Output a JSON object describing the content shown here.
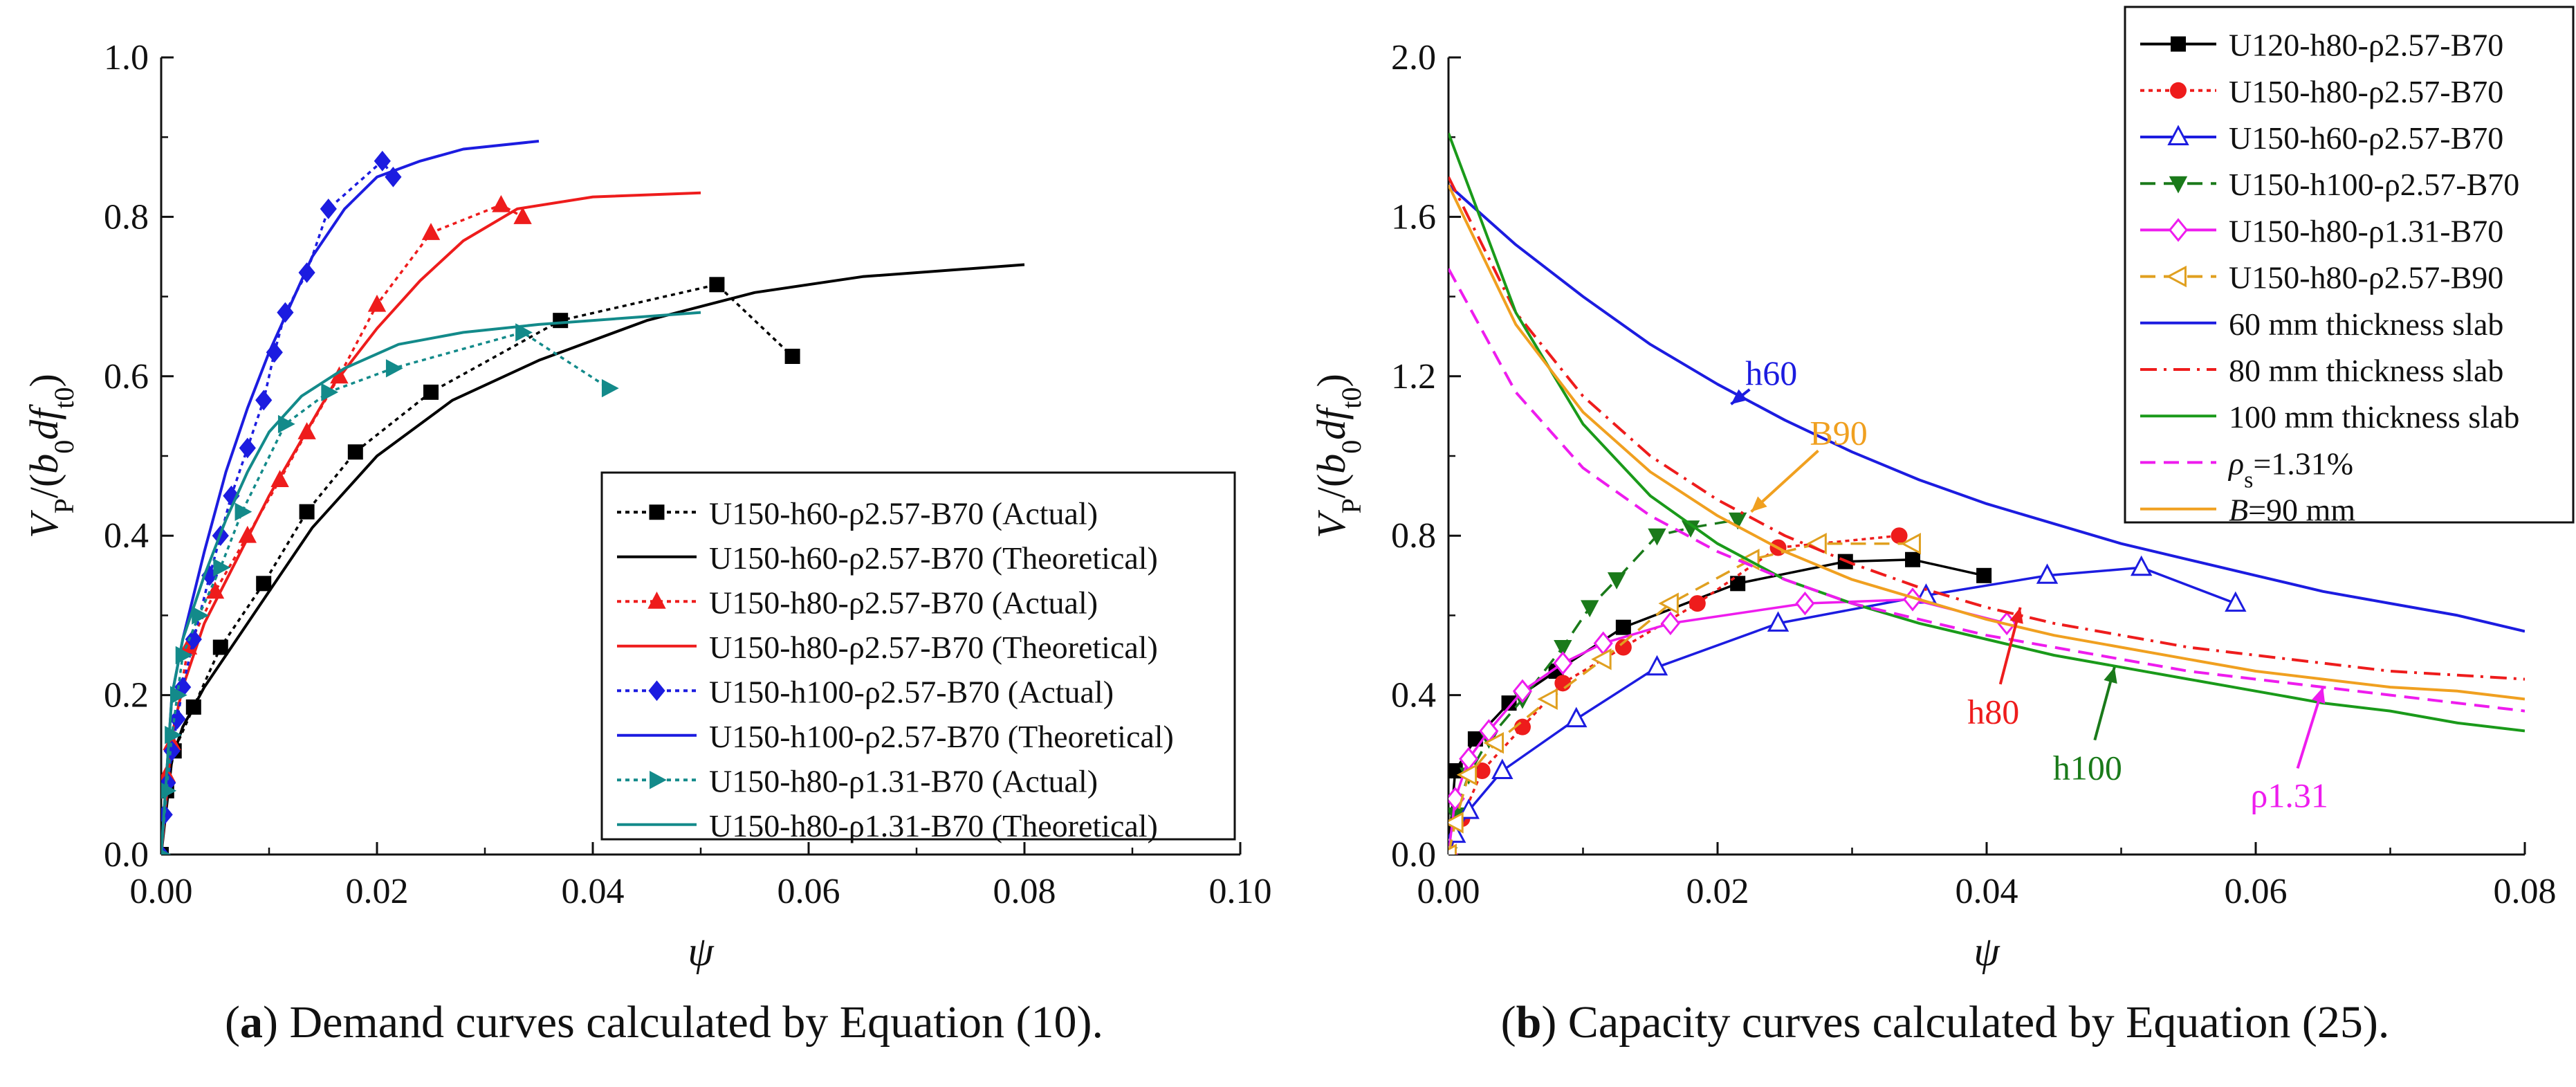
{
  "captions": {
    "a_prefix": "(",
    "a_letter": "a",
    "a_text": ") Demand curves calculated by Equation (10).",
    "b_prefix": "(",
    "b_letter": "b",
    "b_text": ") Capacity curves calculated by Equation (25)."
  },
  "chart_data": [
    {
      "id": "a",
      "type": "line",
      "xlabel": "ψ",
      "ylabel": "V_P/(b_0 d f_t0)",
      "xlim": [
        0,
        0.1
      ],
      "ylim": [
        0,
        1.0
      ],
      "xticks": [
        0.0,
        0.02,
        0.04,
        0.06,
        0.08,
        0.1
      ],
      "xtick_labels": [
        "0.00",
        "0.02",
        "0.04",
        "0.06",
        "0.08",
        "0.10"
      ],
      "yticks": [
        0.0,
        0.2,
        0.4,
        0.6,
        0.8,
        1.0
      ],
      "ytick_labels": [
        "0.0",
        "0.2",
        "0.4",
        "0.6",
        "0.8",
        "1.0"
      ],
      "legend_position": "lower-right",
      "series": [
        {
          "name": "U150-h60-ρ2.57-B70 (Actual)",
          "color": "#000000",
          "dash": "dotted",
          "marker": "square",
          "x": [
            0,
            0.0005,
            0.0012,
            0.003,
            0.0055,
            0.0095,
            0.0135,
            0.018,
            0.025,
            0.037,
            0.0515,
            0.0585
          ],
          "y": [
            0,
            0.08,
            0.13,
            0.185,
            0.26,
            0.34,
            0.43,
            0.505,
            0.58,
            0.67,
            0.715,
            0.625
          ]
        },
        {
          "name": "U150-h60-ρ2.57-B70 (Theoretical)",
          "color": "#000000",
          "dash": "solid",
          "marker": "none",
          "x": [
            0,
            0.001,
            0.002,
            0.004,
            0.007,
            0.01,
            0.014,
            0.02,
            0.027,
            0.035,
            0.045,
            0.055,
            0.065,
            0.08
          ],
          "y": [
            0,
            0.12,
            0.16,
            0.21,
            0.27,
            0.33,
            0.41,
            0.5,
            0.57,
            0.62,
            0.67,
            0.705,
            0.725,
            0.74
          ]
        },
        {
          "name": "U150-h80-ρ2.57-B70 (Actual)",
          "color": "#ee1c1c",
          "dash": "dotted",
          "marker": "triangle",
          "x": [
            0,
            0.0005,
            0.001,
            0.0025,
            0.005,
            0.008,
            0.011,
            0.0135,
            0.0165,
            0.02,
            0.025,
            0.0315,
            0.0335
          ],
          "y": [
            0,
            0.1,
            0.14,
            0.26,
            0.33,
            0.4,
            0.47,
            0.53,
            0.6,
            0.69,
            0.78,
            0.815,
            0.8
          ]
        },
        {
          "name": "U150-h80-ρ2.57-B70 (Theoretical)",
          "color": "#ee1c1c",
          "dash": "solid",
          "marker": "none",
          "x": [
            0,
            0.001,
            0.002,
            0.004,
            0.007,
            0.01,
            0.013,
            0.016,
            0.02,
            0.024,
            0.028,
            0.033,
            0.04,
            0.05
          ],
          "y": [
            0,
            0.15,
            0.21,
            0.29,
            0.37,
            0.45,
            0.52,
            0.59,
            0.66,
            0.72,
            0.77,
            0.81,
            0.825,
            0.83
          ]
        },
        {
          "name": "U150-h100-ρ2.57-B70 (Actual)",
          "color": "#1c1ce0",
          "dash": "dotted",
          "marker": "diamond",
          "x": [
            0,
            0.0003,
            0.0006,
            0.001,
            0.0015,
            0.002,
            0.003,
            0.0045,
            0.0055,
            0.0065,
            0.008,
            0.0095,
            0.0105,
            0.0115,
            0.0135,
            0.0155,
            0.0205,
            0.0215
          ],
          "y": [
            0,
            0.05,
            0.09,
            0.13,
            0.17,
            0.21,
            0.27,
            0.35,
            0.4,
            0.45,
            0.51,
            0.57,
            0.63,
            0.68,
            0.73,
            0.81,
            0.87,
            0.85
          ]
        },
        {
          "name": "U150-h100-ρ2.57-B70 (Theoretical)",
          "color": "#1c1ce0",
          "dash": "solid",
          "marker": "none",
          "x": [
            0,
            0.001,
            0.002,
            0.004,
            0.006,
            0.008,
            0.01,
            0.012,
            0.014,
            0.017,
            0.02,
            0.024,
            0.028,
            0.035
          ],
          "y": [
            0,
            0.2,
            0.27,
            0.38,
            0.48,
            0.56,
            0.63,
            0.69,
            0.75,
            0.81,
            0.85,
            0.87,
            0.885,
            0.895
          ]
        },
        {
          "name": "U150-h80-ρ1.31-B70 (Actual)",
          "color": "#138a8a",
          "dash": "dotted",
          "marker": "triangle-right",
          "x": [
            0,
            0.0005,
            0.001,
            0.0015,
            0.002,
            0.0035,
            0.0055,
            0.0075,
            0.0115,
            0.0155,
            0.0215,
            0.0335,
            0.0415
          ],
          "y": [
            0,
            0.08,
            0.15,
            0.2,
            0.25,
            0.3,
            0.36,
            0.43,
            0.54,
            0.58,
            0.61,
            0.655,
            0.585
          ]
        },
        {
          "name": "U150-h80-ρ1.31-B70 (Theoretical)",
          "color": "#138a8a",
          "dash": "solid",
          "marker": "none",
          "x": [
            0,
            0.001,
            0.002,
            0.004,
            0.006,
            0.008,
            0.01,
            0.013,
            0.017,
            0.022,
            0.028,
            0.035,
            0.045,
            0.05
          ],
          "y": [
            0,
            0.2,
            0.27,
            0.35,
            0.42,
            0.48,
            0.53,
            0.575,
            0.61,
            0.64,
            0.655,
            0.665,
            0.675,
            0.68
          ]
        }
      ]
    },
    {
      "id": "b",
      "type": "line",
      "xlabel": "ψ",
      "ylabel": "V_P/(b_0 d f_t0)",
      "xlim": [
        0,
        0.08
      ],
      "ylim": [
        0,
        2.0
      ],
      "xticks": [
        0.0,
        0.02,
        0.04,
        0.06,
        0.08
      ],
      "xtick_labels": [
        "0.00",
        "0.02",
        "0.04",
        "0.06",
        "0.08"
      ],
      "yticks": [
        0.0,
        0.4,
        0.8,
        1.2,
        1.6,
        2.0
      ],
      "ytick_labels": [
        "0.0",
        "0.4",
        "0.8",
        "1.2",
        "1.6",
        "2.0"
      ],
      "legend_position": "top-right",
      "series": [
        {
          "name": "U120-h80-ρ2.57-B70",
          "color": "#000000",
          "dash": "solid",
          "marker": "square",
          "legend_sample": "solid",
          "x": [
            0,
            0.0005,
            0.002,
            0.0045,
            0.008,
            0.013,
            0.0215,
            0.0295,
            0.0345,
            0.0398
          ],
          "y": [
            0,
            0.21,
            0.29,
            0.38,
            0.46,
            0.57,
            0.68,
            0.735,
            0.74,
            0.7
          ]
        },
        {
          "name": "U150-h80-ρ2.57-B70",
          "color": "#ee1c1c",
          "dash": "dotted",
          "marker": "circle",
          "x": [
            0,
            0.001,
            0.0025,
            0.0055,
            0.0085,
            0.013,
            0.0185,
            0.0245,
            0.0335
          ],
          "y": [
            0,
            0.09,
            0.21,
            0.32,
            0.43,
            0.52,
            0.63,
            0.77,
            0.8
          ]
        },
        {
          "name": "U150-h60-ρ2.57-B70",
          "color": "#1c1ce0",
          "dash": "solid",
          "marker": "triangle-open",
          "x": [
            0,
            0.0005,
            0.0015,
            0.004,
            0.0095,
            0.0155,
            0.0245,
            0.0355,
            0.0445,
            0.0515,
            0.0585
          ],
          "y": [
            0,
            0.05,
            0.11,
            0.21,
            0.34,
            0.47,
            0.58,
            0.65,
            0.7,
            0.72,
            0.63
          ]
        },
        {
          "name": "U150-h100-ρ2.57-B70",
          "color": "#1a7a1a",
          "dash": "dashed",
          "marker": "triangle-down",
          "x": [
            0,
            0.0005,
            0.0015,
            0.003,
            0.0055,
            0.0085,
            0.0105,
            0.0125,
            0.0155,
            0.018,
            0.0215
          ],
          "y": [
            0,
            0.1,
            0.2,
            0.29,
            0.39,
            0.52,
            0.62,
            0.69,
            0.8,
            0.82,
            0.84
          ]
        },
        {
          "name": "U150-h80-ρ1.31-B70",
          "color": "#ee1cee",
          "dash": "solid",
          "marker": "diamond-open",
          "x": [
            0,
            0.0005,
            0.0015,
            0.003,
            0.0055,
            0.0085,
            0.0115,
            0.0165,
            0.0265,
            0.0345,
            0.0415
          ],
          "y": [
            0,
            0.14,
            0.24,
            0.31,
            0.41,
            0.48,
            0.53,
            0.58,
            0.63,
            0.64,
            0.58
          ]
        },
        {
          "name": "U150-h80-ρ2.57-B90",
          "color": "#e0a020",
          "dash": "dashed",
          "marker": "triangle-left-open",
          "x": [
            0,
            0.0005,
            0.0015,
            0.0035,
            0.0075,
            0.0115,
            0.0165,
            0.0225,
            0.0275,
            0.0345
          ],
          "y": [
            0,
            0.08,
            0.2,
            0.28,
            0.39,
            0.49,
            0.63,
            0.74,
            0.78,
            0.78
          ]
        },
        {
          "name": "60 mm thickness slab",
          "color": "#1c1ce0",
          "dash": "solid",
          "marker": "none",
          "curve": "capacity",
          "x": [
            0,
            0.005,
            0.01,
            0.015,
            0.02,
            0.025,
            0.03,
            0.035,
            0.04,
            0.045,
            0.05,
            0.055,
            0.06,
            0.065,
            0.07,
            0.075,
            0.08
          ],
          "y": [
            1.68,
            1.53,
            1.4,
            1.28,
            1.18,
            1.09,
            1.01,
            0.94,
            0.88,
            0.83,
            0.78,
            0.74,
            0.7,
            0.66,
            0.63,
            0.6,
            0.56
          ]
        },
        {
          "name": "80 mm thickness slab",
          "color": "#ee1c1c",
          "dash": "dashdot",
          "marker": "none",
          "curve": "capacity",
          "x": [
            0,
            0.005,
            0.01,
            0.015,
            0.02,
            0.025,
            0.03,
            0.035,
            0.04,
            0.045,
            0.05,
            0.055,
            0.06,
            0.065,
            0.07,
            0.075,
            0.08
          ],
          "y": [
            1.7,
            1.36,
            1.15,
            1.0,
            0.89,
            0.8,
            0.73,
            0.67,
            0.62,
            0.58,
            0.55,
            0.52,
            0.5,
            0.48,
            0.46,
            0.45,
            0.44
          ]
        },
        {
          "name": "100 mm thickness slab",
          "color": "#1a9a1a",
          "dash": "solid",
          "marker": "none",
          "curve": "capacity",
          "x": [
            0,
            0.005,
            0.01,
            0.015,
            0.02,
            0.025,
            0.03,
            0.035,
            0.04,
            0.045,
            0.05,
            0.055,
            0.06,
            0.065,
            0.07,
            0.075,
            0.08
          ],
          "y": [
            1.81,
            1.36,
            1.08,
            0.9,
            0.78,
            0.69,
            0.63,
            0.58,
            0.54,
            0.5,
            0.47,
            0.44,
            0.41,
            0.38,
            0.36,
            0.33,
            0.31
          ]
        },
        {
          "name": "ρs=1.31%",
          "color": "#ee1cee",
          "dash": "dashed",
          "marker": "none",
          "curve": "capacity",
          "x": [
            0,
            0.005,
            0.01,
            0.015,
            0.02,
            0.025,
            0.03,
            0.035,
            0.04,
            0.045,
            0.05,
            0.055,
            0.06,
            0.065,
            0.07,
            0.075,
            0.08
          ],
          "y": [
            1.47,
            1.16,
            0.97,
            0.85,
            0.76,
            0.69,
            0.63,
            0.59,
            0.55,
            0.52,
            0.49,
            0.46,
            0.44,
            0.42,
            0.4,
            0.38,
            0.36
          ]
        },
        {
          "name": "B=90 mm",
          "color": "#f0a020",
          "dash": "solid",
          "marker": "none",
          "curve": "capacity",
          "x": [
            0,
            0.005,
            0.01,
            0.015,
            0.02,
            0.025,
            0.03,
            0.035,
            0.04,
            0.045,
            0.05,
            0.055,
            0.06,
            0.065,
            0.07,
            0.075,
            0.08
          ],
          "y": [
            1.68,
            1.33,
            1.11,
            0.96,
            0.85,
            0.76,
            0.69,
            0.64,
            0.59,
            0.55,
            0.52,
            0.49,
            0.46,
            0.44,
            0.42,
            0.41,
            0.39
          ]
        }
      ],
      "annotations": [
        {
          "text": "h60",
          "color": "#1c1ce0",
          "at": [
            0.024,
            1.21
          ],
          "points_to": [
            0.021,
            1.13
          ],
          "style": "italic-off"
        },
        {
          "text": "B90",
          "color": "#f0a020",
          "at": [
            0.029,
            1.06
          ],
          "points_to": [
            0.0225,
            0.86
          ]
        },
        {
          "text": "h80",
          "color": "#ee1c1c",
          "at": [
            0.0405,
            0.36
          ],
          "points_to": [
            0.0425,
            0.62
          ]
        },
        {
          "text": "h100",
          "color": "#1a7a1a",
          "at": [
            0.0475,
            0.22
          ],
          "points_to": [
            0.0495,
            0.47
          ]
        },
        {
          "text": "ρ1.31",
          "color": "#ee1cee",
          "at": [
            0.0625,
            0.15
          ],
          "points_to": [
            0.065,
            0.42
          ]
        }
      ]
    }
  ]
}
